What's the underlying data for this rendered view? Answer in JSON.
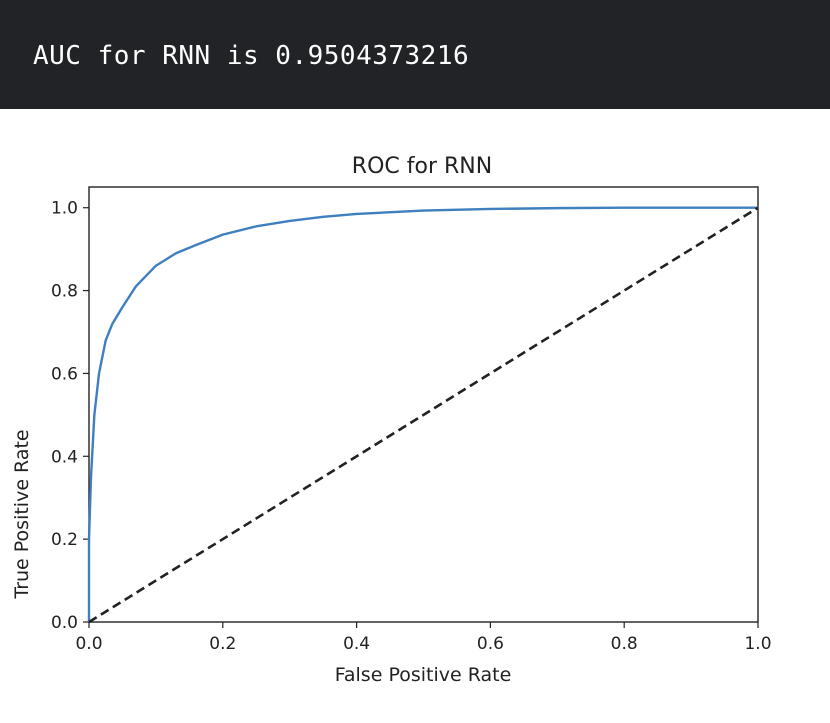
{
  "output": {
    "text": "AUC for RNN is 0.9504373216"
  },
  "colors": {
    "banner_bg": "#212327",
    "banner_text": "#ffffff",
    "roc_line": "#3f7fbf",
    "diagonal_line": "#222222"
  },
  "chart_data": {
    "type": "line",
    "title": "ROC for RNN",
    "xlabel": "False Positive Rate",
    "ylabel": "True Positive Rate",
    "xlim": [
      0.0,
      1.0
    ],
    "ylim": [
      0.0,
      1.05
    ],
    "xticks": [
      0.0,
      0.2,
      0.4,
      0.6,
      0.8,
      1.0
    ],
    "yticks": [
      0.0,
      0.2,
      0.4,
      0.6,
      0.8,
      1.0
    ],
    "xtick_labels": [
      "0.0",
      "0.2",
      "0.4",
      "0.6",
      "0.8",
      "1.0"
    ],
    "ytick_labels": [
      "0.0",
      "0.2",
      "0.4",
      "0.6",
      "0.8",
      "1.0"
    ],
    "grid": false,
    "series": [
      {
        "style": "solid",
        "x": [
          0.0,
          0.0,
          0.003,
          0.008,
          0.015,
          0.025,
          0.035,
          0.05,
          0.07,
          0.1,
          0.13,
          0.16,
          0.2,
          0.25,
          0.3,
          0.35,
          0.4,
          0.5,
          0.6,
          0.7,
          0.8,
          1.0
        ],
        "y": [
          0.0,
          0.2,
          0.35,
          0.5,
          0.6,
          0.68,
          0.72,
          0.76,
          0.81,
          0.86,
          0.89,
          0.91,
          0.935,
          0.955,
          0.968,
          0.978,
          0.985,
          0.993,
          0.997,
          0.999,
          1.0,
          1.0
        ]
      },
      {
        "style": "dashed",
        "x": [
          0.0,
          1.0
        ],
        "y": [
          0.0,
          1.0
        ]
      }
    ]
  }
}
